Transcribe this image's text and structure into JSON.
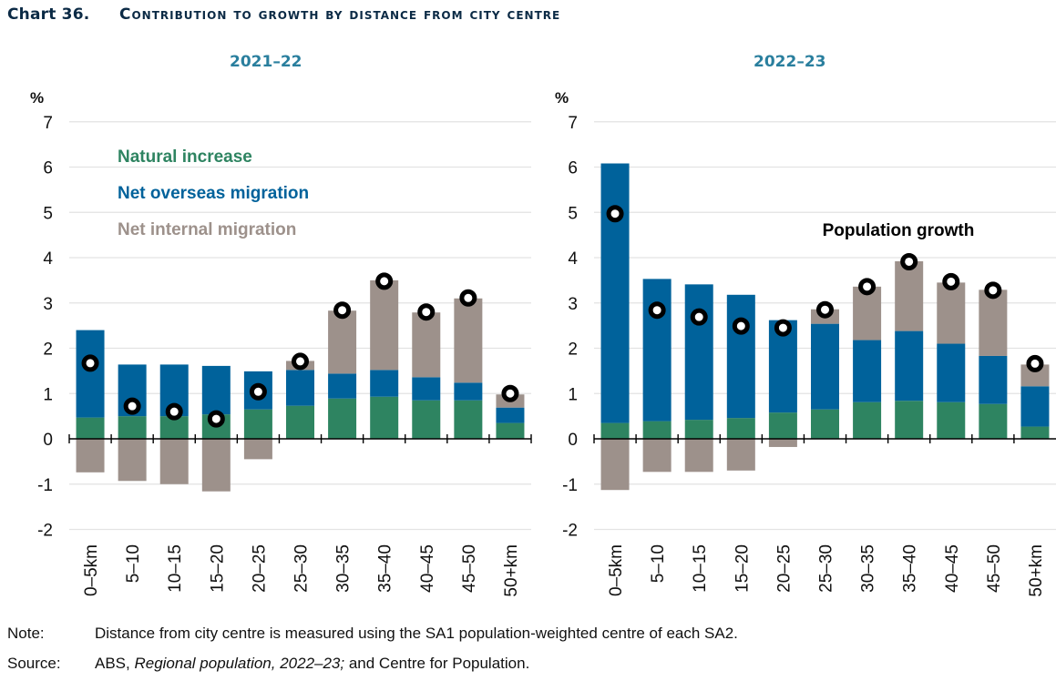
{
  "header": {
    "chart_number": "Chart 36.",
    "title": "Contribution to growth by distance from city centre"
  },
  "footer": {
    "note_label": "Note:",
    "note_text": "Distance from city centre is measured using the SA1 population-weighted centre of each SA2.",
    "source_label": "Source:",
    "source_prefix": "ABS, ",
    "source_italic": "Regional population, 2022–23;",
    "source_suffix": " and Centre for Population."
  },
  "colors": {
    "natural_increase": "#2e8461",
    "net_overseas_migration": "#00629b",
    "net_internal_migration": "#9d918b",
    "population_growth_marker": "#000000",
    "panel_title": "#2a7f9e",
    "gridline": "#e3e3e3"
  },
  "chart_data": [
    {
      "type": "bar",
      "stacked": true,
      "title": "2021–22",
      "ylabel": "%",
      "xlabel": "",
      "ylim": [
        -2,
        7
      ],
      "yticks": [
        7,
        6,
        5,
        4,
        3,
        2,
        1,
        0,
        -1,
        -2
      ],
      "grid": true,
      "legend": {
        "placement": "top-left",
        "entries": [
          "Natural increase",
          "Net overseas migration",
          "Net internal migration"
        ]
      },
      "categories": [
        "0–5km",
        "5–10",
        "10–15",
        "15–20",
        "20–25",
        "25–30",
        "30–35",
        "35–40",
        "40–45",
        "45–50",
        "50+km"
      ],
      "series": [
        {
          "name": "Natural increase",
          "values": [
            0.47,
            0.5,
            0.5,
            0.54,
            0.65,
            0.73,
            0.89,
            0.93,
            0.85,
            0.85,
            0.35
          ]
        },
        {
          "name": "Net overseas migration",
          "values": [
            1.93,
            1.14,
            1.14,
            1.07,
            0.84,
            0.79,
            0.55,
            0.59,
            0.51,
            0.39,
            0.34
          ]
        },
        {
          "name": "Net internal migration",
          "values": [
            -0.74,
            -0.93,
            -1.0,
            -1.16,
            -0.45,
            0.2,
            1.39,
            1.98,
            1.43,
            1.86,
            0.29
          ]
        },
        {
          "name": "Population growth",
          "type": "marker",
          "values": [
            1.67,
            0.72,
            0.6,
            0.44,
            1.04,
            1.71,
            2.84,
            3.48,
            2.8,
            3.11,
            1.0
          ]
        }
      ]
    },
    {
      "type": "bar",
      "stacked": true,
      "title": "2022–23",
      "ylabel": "%",
      "xlabel": "",
      "ylim": [
        -2,
        7
      ],
      "yticks": [
        7,
        6,
        5,
        4,
        3,
        2,
        1,
        0,
        -1,
        -2
      ],
      "grid": true,
      "annotation": "Population growth",
      "categories": [
        "0–5km",
        "5–10",
        "10–15",
        "15–20",
        "20–25",
        "25–30",
        "30–35",
        "35–40",
        "40–45",
        "45–50",
        "50+km"
      ],
      "series": [
        {
          "name": "Natural increase",
          "values": [
            0.35,
            0.39,
            0.42,
            0.46,
            0.58,
            0.65,
            0.81,
            0.84,
            0.81,
            0.77,
            0.27
          ]
        },
        {
          "name": "Net overseas migration",
          "values": [
            5.73,
            3.14,
            2.99,
            2.72,
            2.04,
            1.89,
            1.37,
            1.54,
            1.29,
            1.06,
            0.89
          ]
        },
        {
          "name": "Net internal migration",
          "values": [
            -1.13,
            -0.73,
            -0.73,
            -0.7,
            -0.18,
            0.32,
            1.18,
            1.54,
            1.35,
            1.46,
            0.48
          ]
        },
        {
          "name": "Population growth",
          "type": "marker",
          "values": [
            4.97,
            2.84,
            2.69,
            2.49,
            2.45,
            2.85,
            3.36,
            3.91,
            3.47,
            3.28,
            1.66
          ]
        }
      ]
    }
  ]
}
